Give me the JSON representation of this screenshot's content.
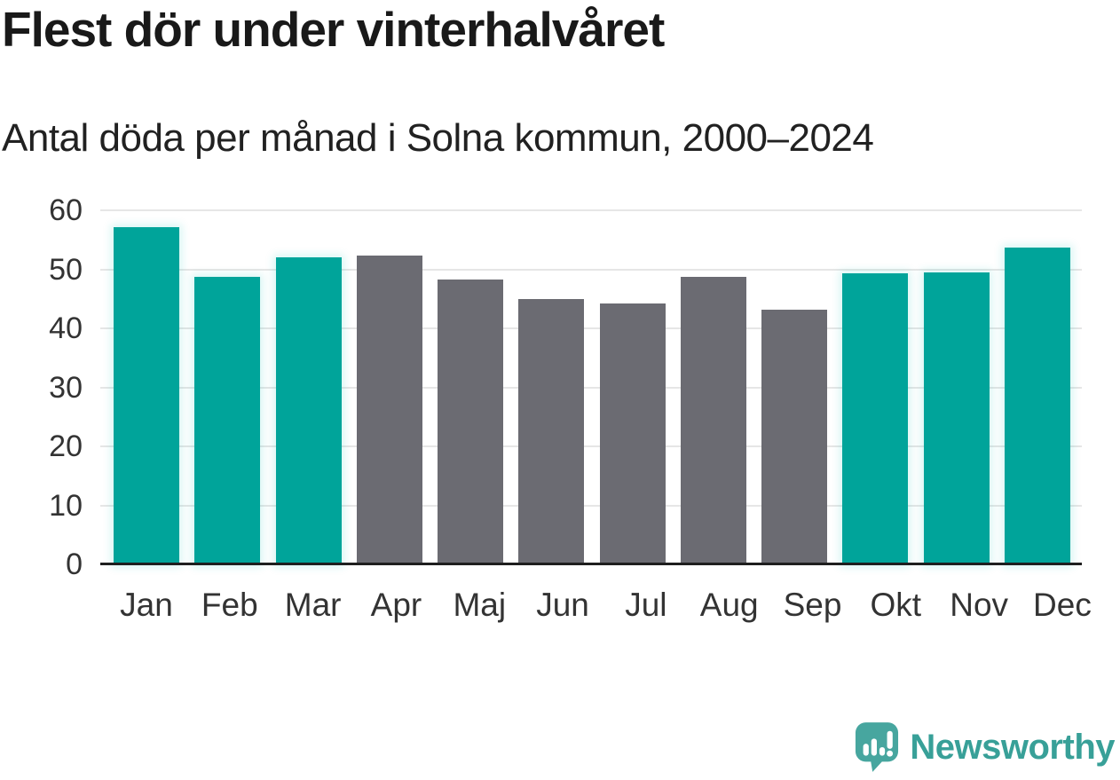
{
  "header": {
    "title": "Flest dör under vinterhalvåret",
    "subtitle": "Antal döda per månad i Solna kommun, 2000–2024"
  },
  "chart_data": {
    "type": "bar",
    "title": "Flest dör under vinterhalvåret",
    "subtitle": "Antal döda per månad i Solna kommun, 2000–2024",
    "categories": [
      "Jan",
      "Feb",
      "Mar",
      "Apr",
      "Maj",
      "Jun",
      "Jul",
      "Aug",
      "Sep",
      "Okt",
      "Nov",
      "Dec"
    ],
    "values": [
      57.1,
      48.7,
      52.0,
      52.4,
      48.3,
      45.0,
      44.2,
      48.7,
      43.1,
      49.3,
      49.5,
      53.7
    ],
    "bar_roles": [
      "highlight",
      "highlight",
      "highlight",
      "base",
      "base",
      "base",
      "base",
      "base",
      "base",
      "highlight",
      "highlight",
      "highlight"
    ],
    "colors": {
      "highlight": "#00a49a",
      "base": "#6b6b72"
    },
    "xlabel": "",
    "ylabel": "",
    "ylim": [
      0,
      60
    ],
    "yticks": [
      0,
      10,
      20,
      30,
      40,
      50,
      60
    ],
    "grid": true,
    "legend": "none"
  },
  "footer": {
    "brand": "Newsworthy",
    "brand_color": "#38a098",
    "logo_icon": "newsworthy-speech-bubble-bar-chart-icon"
  }
}
